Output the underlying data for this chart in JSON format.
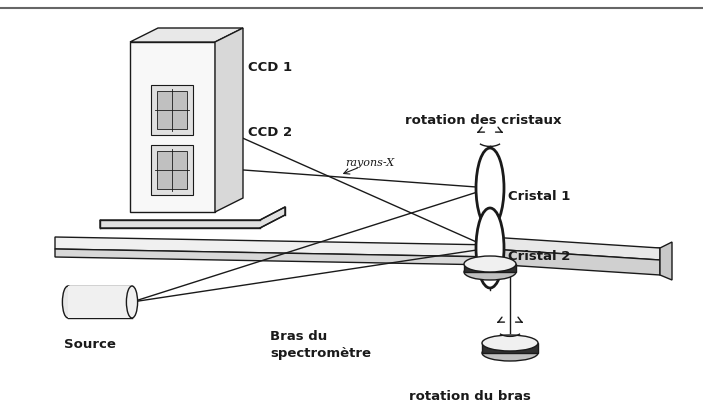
{
  "bg_color": "#ffffff",
  "line_color": "#1a1a1a",
  "labels": {
    "ccd1": "CCD 1",
    "ccd2": "CCD 2",
    "source": "Source",
    "cristal1": "Cristal 1",
    "cristal2": "Cristal 2",
    "rayons_x": "rayons-X",
    "rotation_cristaux": "rotation des cristaux",
    "bras_spectrometre": "Bras du\nspectromètre",
    "rotation_bras": "rotation du bras"
  },
  "figsize": [
    7.03,
    4.17
  ],
  "dpi": 100
}
